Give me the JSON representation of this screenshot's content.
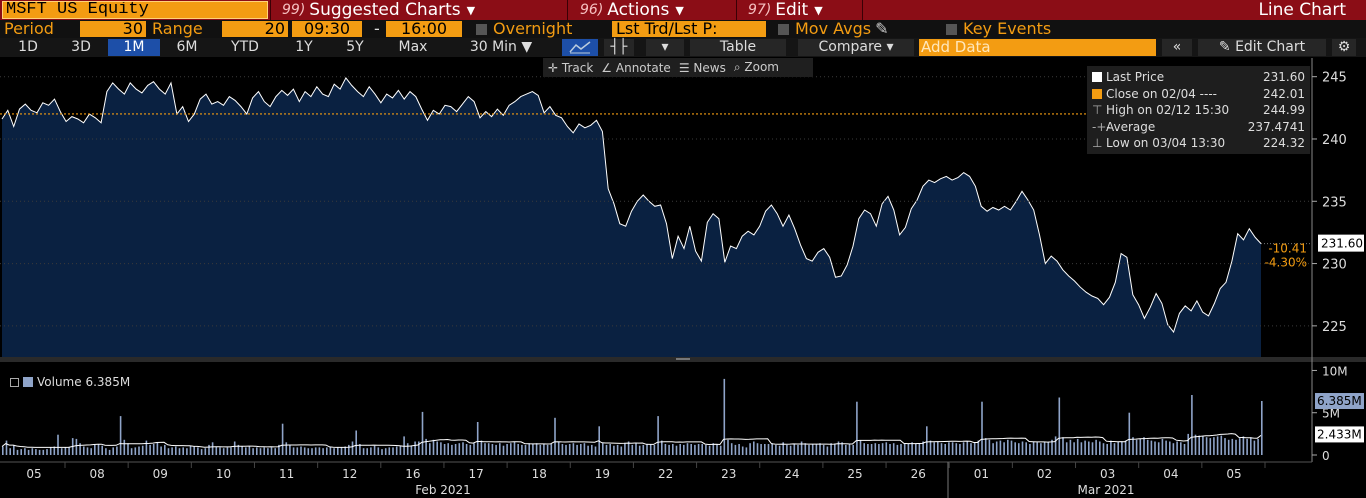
{
  "header": {
    "ticker_input": "MSFT US Equity",
    "menus": [
      {
        "num": "99)",
        "label": "Suggested Charts"
      },
      {
        "num": "96)",
        "label": "Actions"
      },
      {
        "num": "97)",
        "label": "Edit"
      }
    ],
    "chart_type": "Line Chart"
  },
  "settings": {
    "period_label": "Period",
    "period_value": "30",
    "range_label": "Range",
    "range_value": "20",
    "start_time": "09:30",
    "dash": "-",
    "end_time": "16:00",
    "overnight_label": "Overnight",
    "lst_trd_label": "Lst Trd/Lst P:",
    "mov_avgs_label": "Mov Avgs",
    "key_events_label": "Key Events"
  },
  "periods": [
    "1D",
    "3D",
    "1M",
    "6M",
    "YTD",
    "1Y",
    "5Y",
    "Max"
  ],
  "active_period": "1M",
  "toolbar": {
    "interval": "30 Min",
    "table_label": "Table",
    "compare_label": "Compare",
    "add_data_placeholder": "Add Data",
    "edit_chart_label": "Edit Chart"
  },
  "chart_tools": [
    "Track",
    "Annotate",
    "News",
    "Zoom"
  ],
  "legend": [
    {
      "label": "Last Price",
      "value": "231.60",
      "color": "#ffffff"
    },
    {
      "label": "Close on 02/04 ----",
      "value": "242.01",
      "color": "#f39c12"
    },
    {
      "label": "High on 02/12 15:30",
      "value": "244.99",
      "color": ""
    },
    {
      "label": "Average",
      "value": "237.4741",
      "color": ""
    },
    {
      "label": "Low on 03/04 13:30",
      "value": "224.32",
      "color": ""
    }
  ],
  "price_badges": {
    "last": "231.60",
    "change": "-10.41",
    "change_pct": "-4.30%"
  },
  "volume": {
    "legend_label": "Volume",
    "legend_value": "6.385M",
    "badge_last": "6.385M",
    "badge_avg": "2.433M",
    "y_ticks": [
      "10M",
      "5M",
      "0"
    ]
  },
  "x_axis": {
    "days": [
      "05",
      "08",
      "09",
      "10",
      "11",
      "12",
      "16",
      "17",
      "18",
      "19",
      "22",
      "23",
      "24",
      "25",
      "26",
      "01",
      "02",
      "03",
      "04",
      "05"
    ],
    "months": [
      "Feb 2021",
      "Mar 2021"
    ]
  },
  "chart_data": {
    "type": "area",
    "title": "",
    "y_ticks": [
      245,
      240,
      235,
      230,
      225
    ],
    "ylim": [
      222.5,
      246.5
    ],
    "reference_line": {
      "label": "Close on 02/04",
      "value": 242.01
    },
    "last_value": 231.6,
    "series": [
      {
        "name": "Last Price",
        "values": [
          241.6,
          242.3,
          241.0,
          242.4,
          242.8,
          242.3,
          242.1,
          242.9,
          242.7,
          243.2,
          242.2,
          241.4,
          241.8,
          241.6,
          241.3,
          242.0,
          241.7,
          241.3,
          243.8,
          244.5,
          244.0,
          243.6,
          244.5,
          244.0,
          243.7,
          244.3,
          244.6,
          244.0,
          243.6,
          244.5,
          242.0,
          242.6,
          241.4,
          242.0,
          243.2,
          243.6,
          242.8,
          243.0,
          242.7,
          243.4,
          243.1,
          242.6,
          242.0,
          243.3,
          243.8,
          243.0,
          242.6,
          243.4,
          243.9,
          243.5,
          244.0,
          243.0,
          243.8,
          243.4,
          244.2,
          243.6,
          243.4,
          244.4,
          244.0,
          244.9,
          244.3,
          243.8,
          243.4,
          244.2,
          243.6,
          242.9,
          243.6,
          243.3,
          243.9,
          243.2,
          243.8,
          243.4,
          242.4,
          241.5,
          242.3,
          242.0,
          242.7,
          242.6,
          242.2,
          242.8,
          243.4,
          243.0,
          241.7,
          242.2,
          241.8,
          242.4,
          241.9,
          242.7,
          243.0,
          243.4,
          243.6,
          243.8,
          243.5,
          242.1,
          242.6,
          241.9,
          241.7,
          241.0,
          240.5,
          241.2,
          240.9,
          241.1,
          241.5,
          240.6,
          236.0,
          234.8,
          233.2,
          233.0,
          234.2,
          235.0,
          235.5,
          235.0,
          234.6,
          234.7,
          233.2,
          230.4,
          232.2,
          231.2,
          233.0,
          231.0,
          230.2,
          233.3,
          234.0,
          233.6,
          230.1,
          231.4,
          231.2,
          232.2,
          232.6,
          232.3,
          233.0,
          234.2,
          234.7,
          234.0,
          233.0,
          233.9,
          232.8,
          231.5,
          230.4,
          230.2,
          230.9,
          231.2,
          230.5,
          228.9,
          229.0,
          229.9,
          231.4,
          233.6,
          234.3,
          234.0,
          233.0,
          234.8,
          235.4,
          234.3,
          232.3,
          232.9,
          234.4,
          235.1,
          236.2,
          236.7,
          236.5,
          236.8,
          237.0,
          236.7,
          236.9,
          237.3,
          237.0,
          236.2,
          234.6,
          234.2,
          234.5,
          234.3,
          234.6,
          234.3,
          235.0,
          235.8,
          235.1,
          234.3,
          232.3,
          230.0,
          230.6,
          230.2,
          229.5,
          229.0,
          228.6,
          228.1,
          227.7,
          227.4,
          227.2,
          226.7,
          227.3,
          228.5,
          230.8,
          230.5,
          227.5,
          226.7,
          225.6,
          226.5,
          227.6,
          226.8,
          225.1,
          224.5,
          226.0,
          226.6,
          226.2,
          227.0,
          226.1,
          225.8,
          226.8,
          228.0,
          228.5,
          230.2,
          232.4,
          231.9,
          232.8,
          232.1,
          231.6
        ]
      }
    ],
    "volume_series": {
      "name": "Volume",
      "unit": "M",
      "values": [
        1.0,
        1.7,
        0.8,
        1.2,
        0.6,
        0.7,
        0.8,
        0.6,
        0.8,
        0.7,
        0.6,
        0.6,
        0.7,
        0.9,
        1.0,
        2.4,
        0.8,
        0.9,
        0.9,
        2.0,
        1.9,
        1.4,
        1.0,
        0.9,
        0.8,
        1.2,
        1.3,
        1.1,
        0.8,
        0.6,
        0.9,
        1.0,
        4.6,
        1.8,
        1.4,
        0.8,
        0.9,
        1.0,
        1.1,
        1.7,
        1.2,
        1.3,
        1.5,
        1.0,
        1.2,
        0.8,
        0.9,
        1.0,
        0.8,
        0.9,
        0.8,
        1.1,
        1.0,
        0.9,
        0.7,
        0.8,
        1.2,
        1.5,
        1.0,
        0.9,
        0.8,
        0.9,
        0.9,
        1.6,
        1.2,
        1.0,
        0.9,
        1.0,
        0.8,
        0.9,
        0.8,
        0.9,
        0.8,
        0.9,
        0.8,
        1.2,
        3.7,
        1.5,
        1.2,
        0.9,
        0.9,
        1.0,
        0.9,
        0.8,
        0.8,
        0.9,
        0.9,
        0.8,
        0.9,
        1.0,
        0.8,
        0.9,
        0.9,
        1.0,
        1.2,
        1.6,
        2.9,
        1.3,
        0.8,
        0.8,
        0.9,
        1.1,
        0.9,
        0.7,
        0.8,
        0.9,
        0.9,
        1.0,
        1.1,
        2.2,
        1.4,
        1.1,
        1.6,
        1.6,
        5.1,
        1.9,
        1.4,
        1.8,
        1.6,
        1.5,
        1.3,
        1.4,
        1.2,
        1.3,
        1.4,
        1.5,
        1.3,
        1.2,
        1.4,
        3.9,
        1.7,
        1.4,
        1.4,
        1.3,
        1.2,
        1.4,
        1.1,
        1.3,
        1.4,
        1.6,
        1.3,
        1.2,
        1.2,
        1.4,
        1.3,
        1.4,
        1.2,
        1.3,
        1.2,
        1.3,
        4.4,
        1.6,
        1.3,
        1.2,
        1.3,
        1.4,
        1.2,
        1.3,
        1.4,
        1.1,
        1.2,
        1.0,
        3.4,
        1.4,
        1.2,
        1.3,
        1.1,
        1.2,
        1.0,
        1.4,
        1.6,
        1.2,
        1.4,
        1.1,
        1.2,
        1.3,
        1.3,
        1.2,
        4.6,
        1.7,
        1.3,
        1.2,
        1.3,
        1.1,
        1.3,
        1.2,
        1.4,
        1.3,
        1.2,
        1.3,
        1.3,
        1.2,
        1.1,
        1.4,
        1.3,
        1.1,
        9.0,
        1.8,
        1.4,
        1.2,
        1.3,
        1.0,
        0.9,
        1.4,
        1.6,
        1.4,
        1.3,
        1.3,
        1.3,
        1.4,
        1.2,
        1.1,
        1.5,
        1.2,
        1.1,
        1.3,
        1.2,
        1.6,
        1.4,
        1.2,
        1.3,
        1.3,
        1.4,
        1.2,
        1.0,
        1.4,
        1.3,
        1.6,
        1.5,
        1.2,
        1.3,
        1.2,
        6.3,
        1.7,
        1.4,
        1.3,
        1.3,
        1.4,
        1.3,
        1.4,
        1.5,
        1.3,
        1.4,
        1.2,
        1.3,
        1.4,
        1.3,
        1.5,
        1.3,
        1.4,
        1.6,
        3.4,
        1.7,
        1.5,
        1.6,
        1.4,
        1.3,
        1.5,
        1.5,
        1.4,
        1.3,
        1.5,
        1.6,
        1.4,
        1.5,
        1.7,
        6.3,
        2.0,
        1.8,
        1.4,
        1.6,
        1.7,
        1.5,
        1.8,
        1.7,
        1.5,
        1.4,
        1.6,
        1.5,
        1.3,
        1.6,
        1.5,
        1.4,
        1.6,
        1.5,
        1.8,
        2.2,
        6.8,
        2.1,
        1.5,
        1.8,
        1.5,
        1.9,
        1.5,
        1.7,
        1.6,
        1.5,
        1.8,
        1.6,
        1.4,
        1.3,
        1.7,
        1.4,
        1.6,
        1.6,
        1.7,
        5.0,
        2.1,
        1.8,
        1.9,
        2.1,
        1.8,
        1.7,
        1.6,
        1.5,
        1.9,
        1.7,
        1.6,
        1.4,
        1.6,
        1.5,
        1.3,
        2.5,
        7.1,
        2.4,
        2.3,
        2.2,
        2.1,
        2.0,
        2.1,
        2.2,
        2.3,
        2.0,
        1.8,
        1.9,
        1.8,
        2.0,
        2.2,
        1.9,
        2.1,
        1.7,
        1.9,
        6.385
      ]
    }
  }
}
